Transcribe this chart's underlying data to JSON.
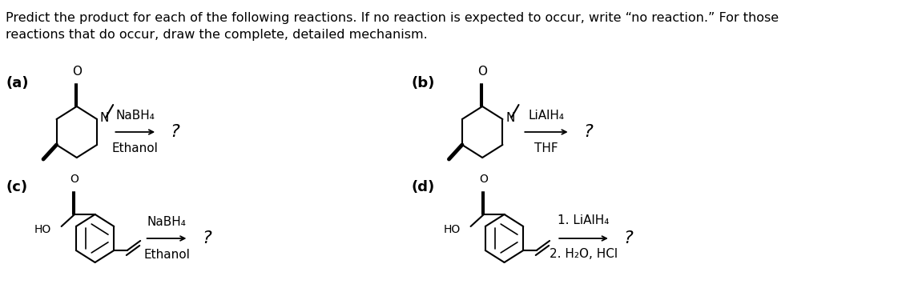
{
  "title_text": "Predict the product for each of the following reactions. If no reaction is expected to occur, write “no reaction.” For those\nreactions that do occur, draw the complete, detailed mechanism.",
  "bg_color": "#ffffff",
  "text_color": "#000000",
  "label_color": "#1a1a1a",
  "panel_labels": [
    "(a)",
    "(b)",
    "(c)",
    "(d)"
  ],
  "reagents_a": [
    "NaBH₄",
    "Ethanol"
  ],
  "reagents_b": [
    "LiAlH₄",
    "THF"
  ],
  "reagents_c": [
    "NaBH₄",
    "Ethanol"
  ],
  "reagents_d": [
    "1. LiAlH₄",
    "2. H₂O, HCl"
  ],
  "question_mark": "?",
  "font_size_title": 11.5,
  "font_size_label": 13,
  "font_size_reagent": 11,
  "font_size_question": 16
}
